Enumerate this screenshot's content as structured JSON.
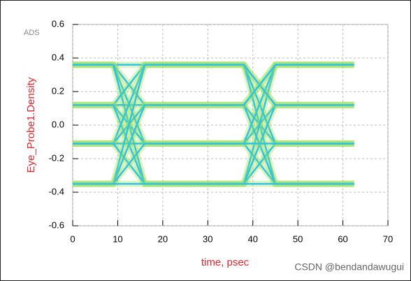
{
  "chart_data": {
    "type": "eye",
    "corner_label": "ADS",
    "xlabel": "time, psec",
    "ylabel": "Eye_Probe1.Density",
    "watermark": "CSDN @bendandawugui",
    "color": "#2fc4e4",
    "level_color": "#9ee05a",
    "grid": true,
    "xlim": [
      0,
      70
    ],
    "xticks": [
      0,
      10,
      20,
      30,
      40,
      50,
      60,
      70
    ],
    "ylim": [
      -0.6,
      0.6
    ],
    "yticks": [
      -0.6,
      -0.4,
      -0.2,
      {
        "value": 0,
        "label": "0.0"
      },
      0.2,
      0.4,
      0.6
    ],
    "x": [
      0,
      9,
      16,
      38,
      45,
      62.5
    ],
    "series": [
      {
        "values": [
          0.36,
          0.36,
          0.36,
          0.36,
          -0.35,
          -0.35
        ]
      },
      {
        "values": [
          0.36,
          0.36,
          0.12,
          0.12,
          -0.11,
          -0.11
        ]
      },
      {
        "values": [
          0.36,
          0.36,
          -0.11,
          -0.11,
          0.12,
          0.12
        ]
      },
      {
        "values": [
          0.36,
          0.36,
          -0.35,
          -0.35,
          0.36,
          0.36
        ]
      },
      {
        "values": [
          0.12,
          0.12,
          0.36,
          0.36,
          0.12,
          0.12
        ]
      },
      {
        "values": [
          0.12,
          0.12,
          0.12,
          0.12,
          0.36,
          0.36
        ]
      },
      {
        "values": [
          0.12,
          0.12,
          -0.11,
          -0.11,
          -0.35,
          -0.35
        ]
      },
      {
        "values": [
          0.12,
          0.12,
          -0.35,
          -0.35,
          -0.11,
          -0.11
        ]
      },
      {
        "values": [
          -0.11,
          -0.11,
          0.36,
          0.36,
          -0.11,
          -0.11
        ]
      },
      {
        "values": [
          -0.11,
          -0.11,
          0.12,
          0.12,
          -0.35,
          -0.35
        ]
      },
      {
        "values": [
          -0.11,
          -0.11,
          -0.11,
          -0.11,
          0.36,
          0.36
        ]
      },
      {
        "values": [
          -0.11,
          -0.11,
          -0.35,
          -0.35,
          0.12,
          0.12
        ]
      },
      {
        "values": [
          -0.35,
          -0.35,
          0.36,
          0.36,
          0.12,
          0.12
        ]
      },
      {
        "values": [
          -0.35,
          -0.35,
          0.12,
          0.12,
          0.36,
          0.36
        ]
      },
      {
        "values": [
          -0.35,
          -0.35,
          -0.11,
          -0.11,
          -0.11,
          -0.11
        ]
      },
      {
        "values": [
          -0.35,
          -0.35,
          -0.35,
          -0.35,
          -0.35,
          -0.35
        ]
      }
    ]
  }
}
